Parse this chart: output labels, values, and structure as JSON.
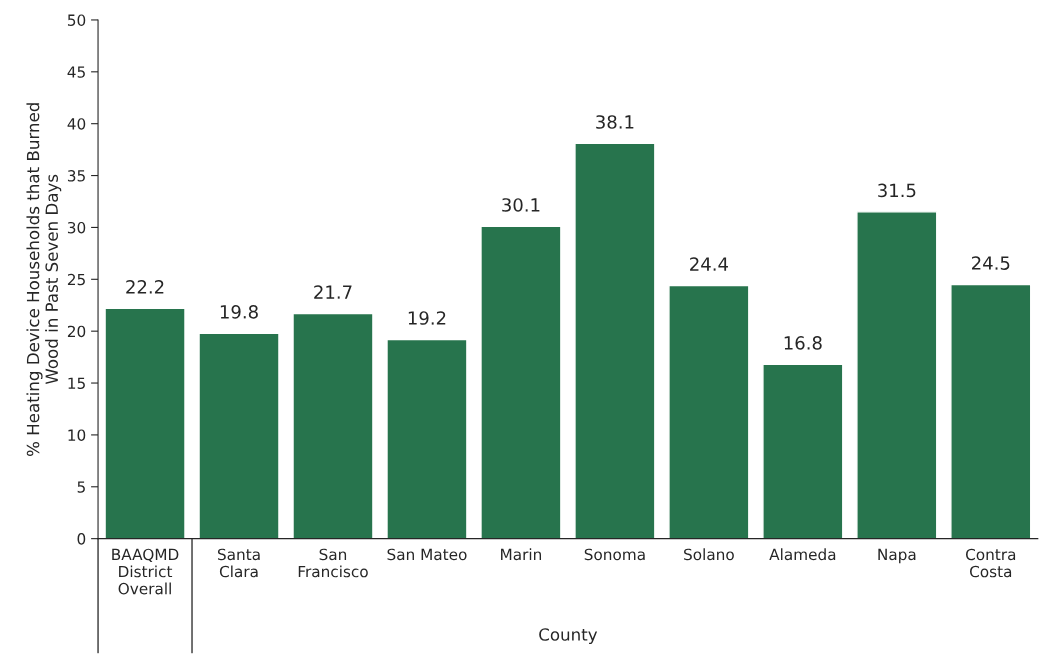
{
  "chart_data": {
    "type": "bar",
    "xlabel": "County",
    "ylabel": "% Heating Device Households that Burned\nWood in Past Seven Days",
    "categories": [
      "BAAQMD\nDistrict\nOverall",
      "Santa\nClara",
      "San\nFrancisco",
      "San Mateo",
      "Marin",
      "Sonoma",
      "Solano",
      "Alameda",
      "Napa",
      "Contra\nCosta"
    ],
    "values": [
      22.2,
      19.8,
      21.7,
      19.2,
      30.1,
      38.1,
      24.4,
      16.8,
      31.5,
      24.5
    ],
    "color": "#27744d",
    "ylim": [
      0,
      50
    ],
    "yticks": [
      0,
      5,
      10,
      15,
      20,
      25,
      30,
      35,
      40,
      45,
      50
    ],
    "grid": false,
    "data_labels": true
  }
}
